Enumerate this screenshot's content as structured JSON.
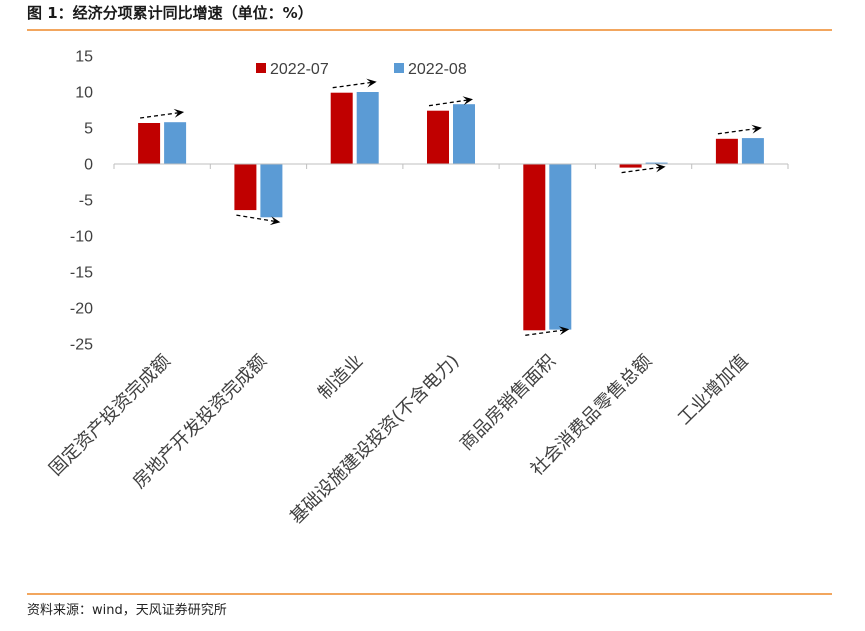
{
  "colors": {
    "rule": "#F2A65E",
    "axis": "#BFBFBF",
    "text": "#404040",
    "arrow": "#000000"
  },
  "footer": {
    "source": "资料来源：wind，天风证券研究所"
  },
  "chart_data": {
    "type": "bar",
    "title": "图 1：经济分项累计同比增速（单位：%）",
    "xlabel": "",
    "ylabel": "",
    "categories": [
      "固定资产投资完成额",
      "房地产开发投资完成额",
      "制造业",
      "基础设施建设投资(不含电力)",
      "商品房销售面积",
      "社会消费品零售总额",
      "工业增加值"
    ],
    "series": [
      {
        "name": "2022-07",
        "color": "#C00000",
        "values": [
          5.7,
          -6.4,
          9.9,
          7.4,
          -23.1,
          -0.5,
          3.5
        ]
      },
      {
        "name": "2022-08",
        "color": "#5B9BD5",
        "values": [
          5.8,
          -7.4,
          10.0,
          8.3,
          -23.0,
          0.2,
          3.6
        ]
      }
    ],
    "ylim": [
      -25,
      15
    ],
    "y_ticks": [
      15,
      10,
      5,
      0,
      -5,
      -10,
      -15,
      -20,
      -25
    ],
    "y_tick_labels": [
      "15",
      "10",
      "5",
      "0",
      "-5",
      "-10",
      "-15",
      "-20",
      "-25"
    ],
    "grid": false,
    "legend": "top"
  }
}
